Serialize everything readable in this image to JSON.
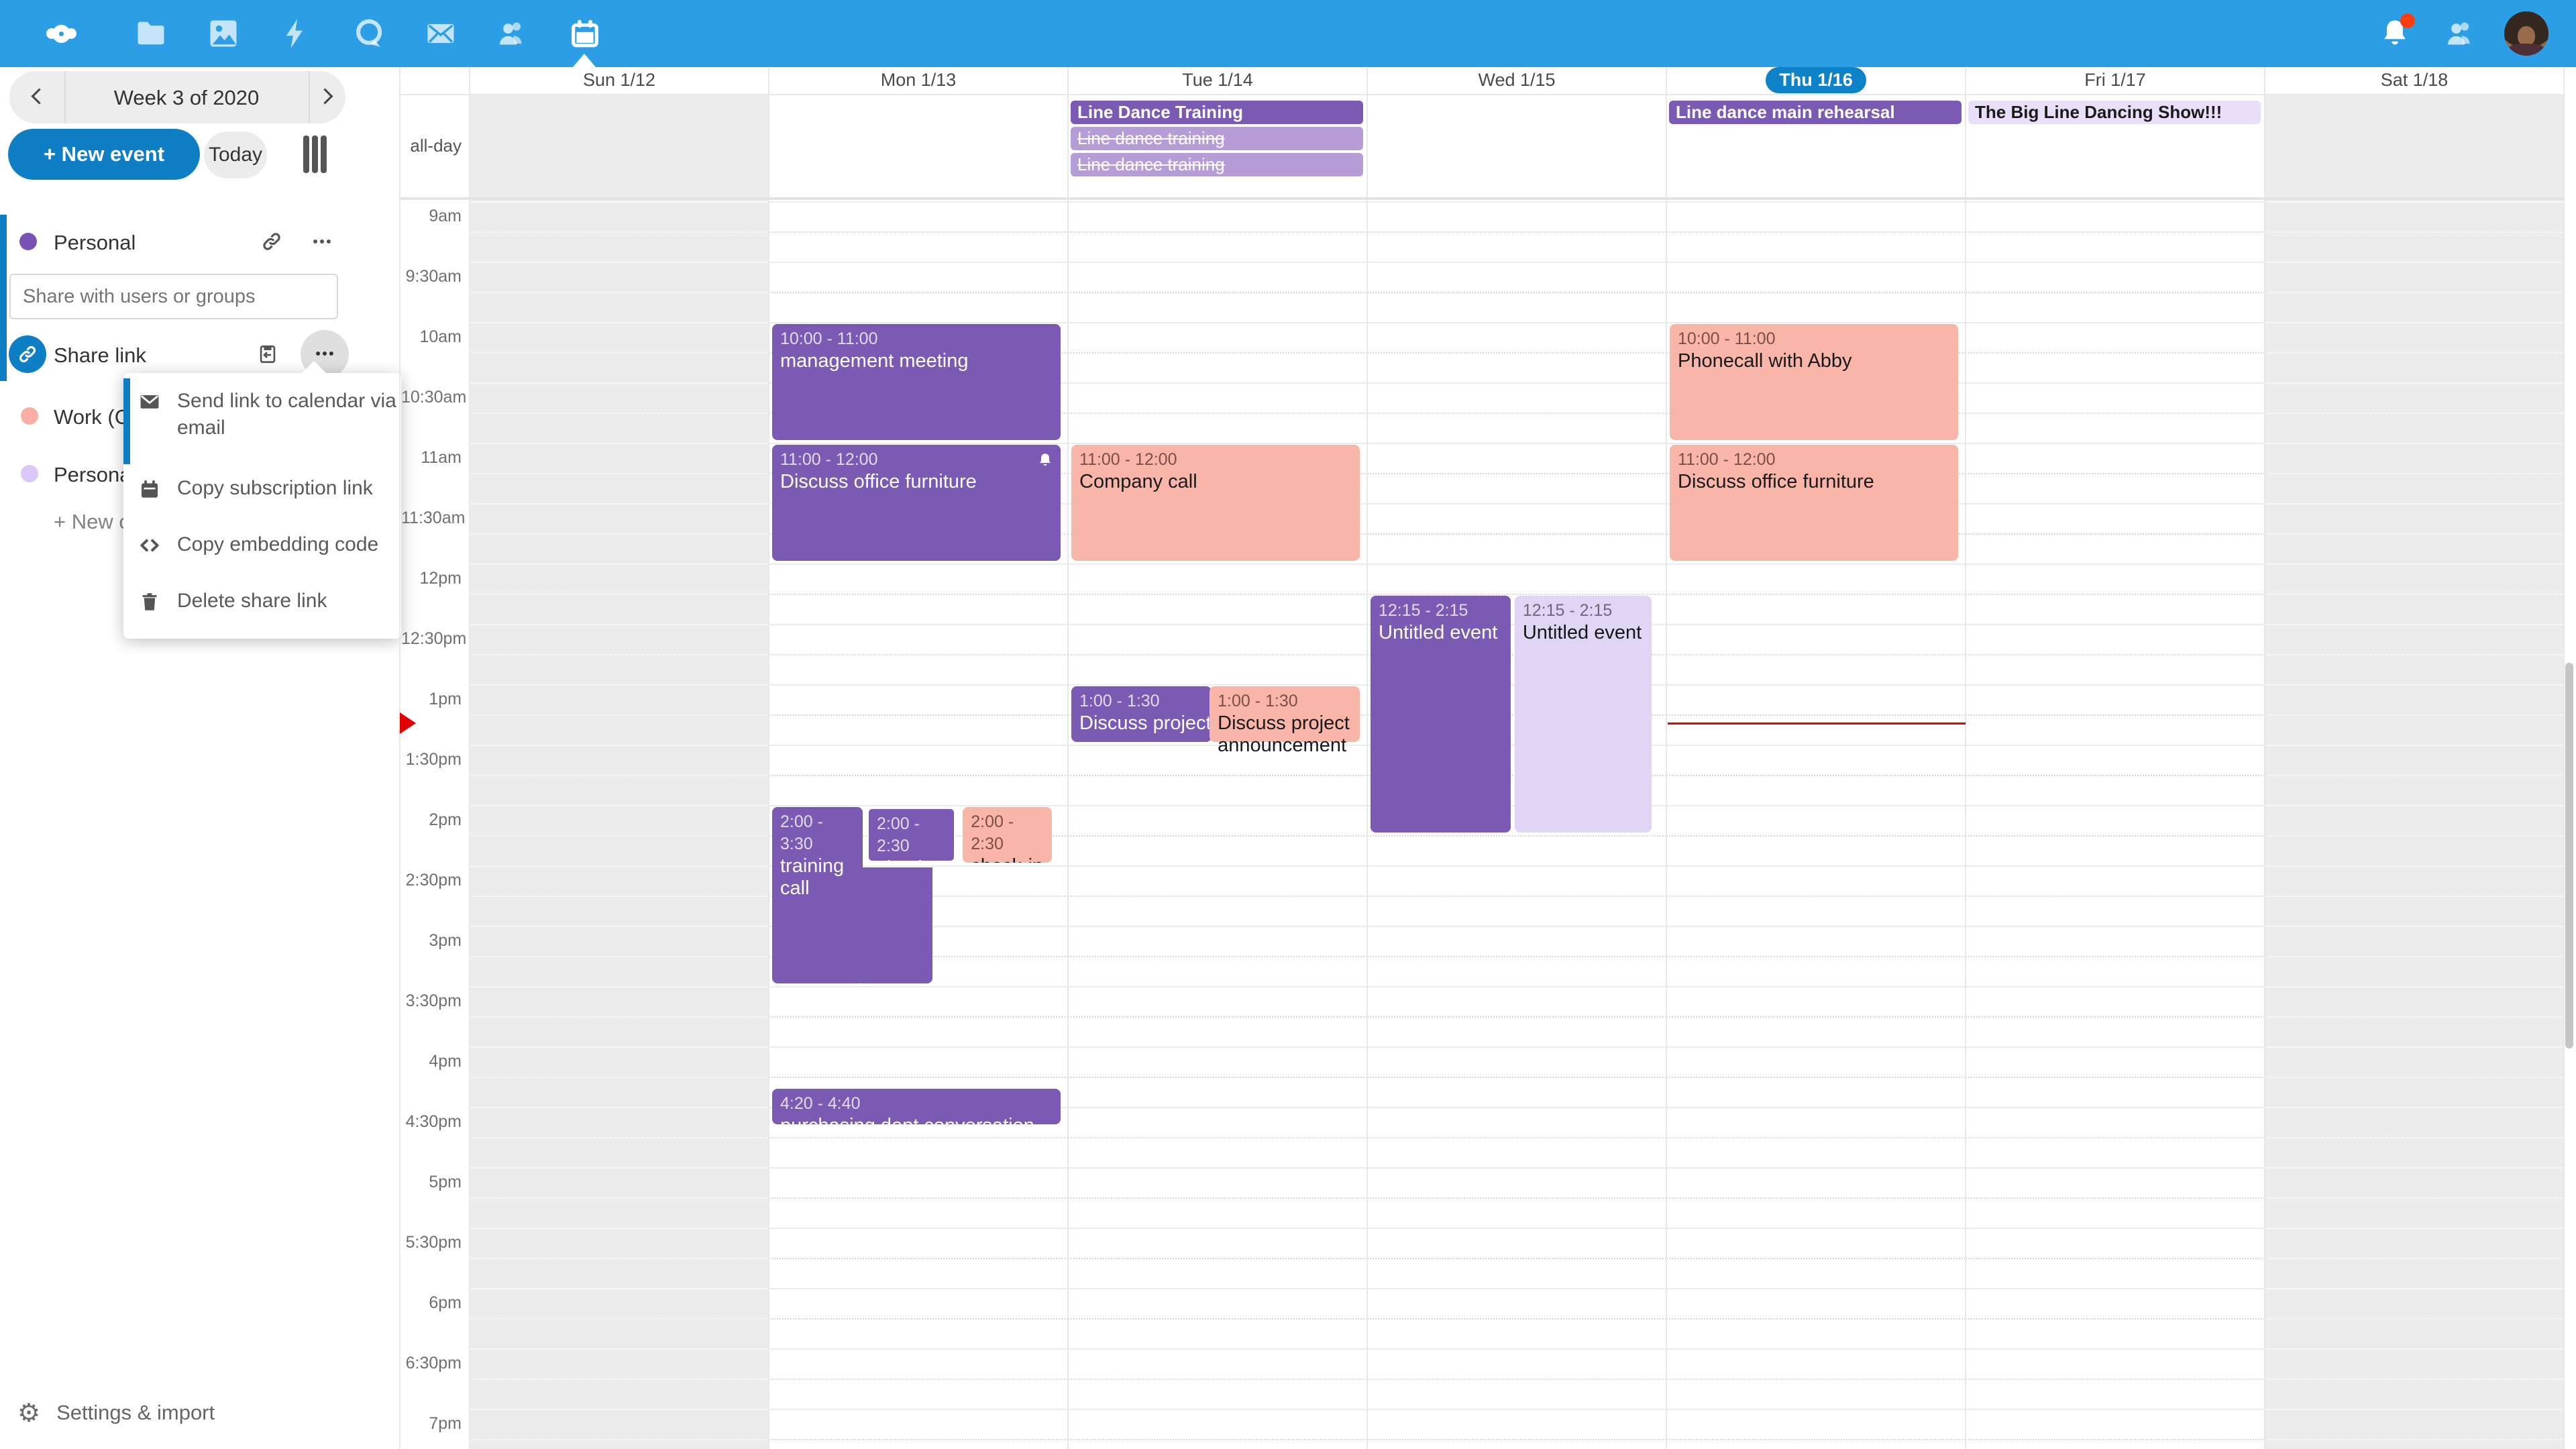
{
  "colors": {
    "topbar": "#2b9ee6",
    "primary": "#0e7fc4",
    "purple": "#7a5ab3",
    "pink": "#fab5a9",
    "lavender": "#e1d5f6",
    "lavender_light": "#e9dff9",
    "purple_muted": "#b79dd8",
    "weekend": "#ececec",
    "current_time_red": "#e30000",
    "notification_badge": "#ff3b10",
    "today_pill": "#0d82c9"
  },
  "topbar": {
    "apps": [
      "files",
      "photos",
      "activity",
      "talk",
      "mail",
      "contacts",
      "calendar"
    ],
    "active_app": "calendar"
  },
  "sidebar": {
    "week_label": "Week 3 of 2020",
    "new_event_label": "+ New event",
    "today_label": "Today",
    "calendars": [
      {
        "label": "Personal",
        "color": "#7a52b5"
      },
      {
        "label": "Work (C",
        "color": "#f9afa4"
      },
      {
        "label": "Persona",
        "color": "#dbc8f6"
      }
    ],
    "share_placeholder": "Share with users or groups",
    "share_link_label": "Share link",
    "new_calendar_label": "+ New c",
    "settings_label": "Settings & import"
  },
  "menu": {
    "items": [
      {
        "icon": "envelope-icon",
        "label": "Send link to calendar via email"
      },
      {
        "icon": "calendar-icon",
        "label": "Copy subscription link"
      },
      {
        "icon": "code-icon",
        "label": "Copy embedding code"
      },
      {
        "icon": "trash-icon",
        "label": "Delete share link"
      }
    ]
  },
  "calendar": {
    "days": [
      "Sun 1/12",
      "Mon 1/13",
      "Tue 1/14",
      "Wed 1/15",
      "Thu 1/16",
      "Fri 1/17",
      "Sat 1/18"
    ],
    "today_index": 4,
    "weekend_indices": [
      0,
      6
    ],
    "allday_label": "all-day",
    "times": [
      "9am",
      "9:30am",
      "10am",
      "10:30am",
      "11am",
      "11:30am",
      "12pm",
      "12:30pm",
      "1pm",
      "1:30pm",
      "2pm",
      "2:30pm",
      "3pm",
      "3:30pm",
      "4pm",
      "4:30pm",
      "5pm",
      "5:30pm",
      "6pm",
      "6:30pm",
      "7pm"
    ],
    "allday_events": [
      {
        "day": 2,
        "row": 0,
        "title": "Line Dance Training",
        "variant": "purple"
      },
      {
        "day": 2,
        "row": 1,
        "title": "Line dance training",
        "variant": "struck"
      },
      {
        "day": 2,
        "row": 2,
        "title": "Line dance training",
        "variant": "struck"
      },
      {
        "day": 4,
        "row": 0,
        "title": "Line dance main rehearsal",
        "variant": "purple"
      },
      {
        "day": 5,
        "row": 0,
        "title": "The Big Line Dancing Show!!!",
        "variant": "lavlight"
      }
    ],
    "events": [
      {
        "day": 1,
        "start": 600,
        "end": 660,
        "time": "10:00 - 11:00",
        "title": "management meeting",
        "variant": "purple",
        "x": 0,
        "w": 1
      },
      {
        "day": 1,
        "start": 660,
        "end": 720,
        "time": "11:00 - 12:00",
        "title": "Discuss office furniture",
        "variant": "purple",
        "x": 0,
        "w": 1,
        "bell": true
      },
      {
        "day": 2,
        "start": 660,
        "end": 720,
        "time": "11:00 - 12:00",
        "title": "Company call",
        "variant": "pink",
        "x": 0,
        "w": 1
      },
      {
        "day": 2,
        "start": 780,
        "end": 810,
        "time": "1:00 - 1:30",
        "title": "Discuss project announcement",
        "variant": "purple",
        "x": 0,
        "w": 0.49,
        "clip": true
      },
      {
        "day": 2,
        "start": 780,
        "end": 810,
        "time": "1:00 - 1:30",
        "title": "Discuss project announcement",
        "variant": "pink",
        "x": 0.475,
        "w": 0.525,
        "ovis": true
      },
      {
        "day": 3,
        "start": 735,
        "end": 855,
        "time": "12:15 - 2:15",
        "title": "Untitled event",
        "variant": "purple",
        "x": 0,
        "w": 0.49
      },
      {
        "day": 3,
        "start": 735,
        "end": 855,
        "time": "12:15 - 2:15",
        "title": "Untitled event",
        "variant": "lav",
        "x": 0.495,
        "w": 0.48
      },
      {
        "day": 4,
        "start": 600,
        "end": 660,
        "time": "10:00 - 11:00",
        "title": "Phonecall with Abby",
        "variant": "pink",
        "x": 0,
        "w": 1
      },
      {
        "day": 4,
        "start": 660,
        "end": 720,
        "time": "11:00 - 12:00",
        "title": "Discuss office furniture",
        "variant": "pink",
        "x": 0,
        "w": 1
      },
      {
        "day": 1,
        "start": 840,
        "end": 930,
        "time": "2:00 - 3:30",
        "title": "training call",
        "variant": "purple",
        "x": 0,
        "w": 0.32
      },
      {
        "day": 1,
        "start": 870,
        "end": 930,
        "time": "",
        "title": "",
        "variant": "purple",
        "x": 0.3,
        "w": 0.26,
        "ext": true
      },
      {
        "day": 1,
        "start": 840,
        "end": 870,
        "time": "2:00 - 2:30",
        "title": "check-in",
        "variant": "purple",
        "x": 0.325,
        "w": 0.315,
        "bordered": true
      },
      {
        "day": 1,
        "start": 840,
        "end": 870,
        "time": "2:00 - 2:30",
        "title": "check-in",
        "variant": "pink",
        "x": 0.655,
        "w": 0.315
      },
      {
        "day": 1,
        "start": 980,
        "end": 1000,
        "time": "4:20 - 4:40",
        "title": "purchasing dept conversation",
        "variant": "purple",
        "x": 0,
        "w": 1,
        "ovis": true
      }
    ],
    "current_time": {
      "day": 4,
      "minutes": 799
    }
  }
}
